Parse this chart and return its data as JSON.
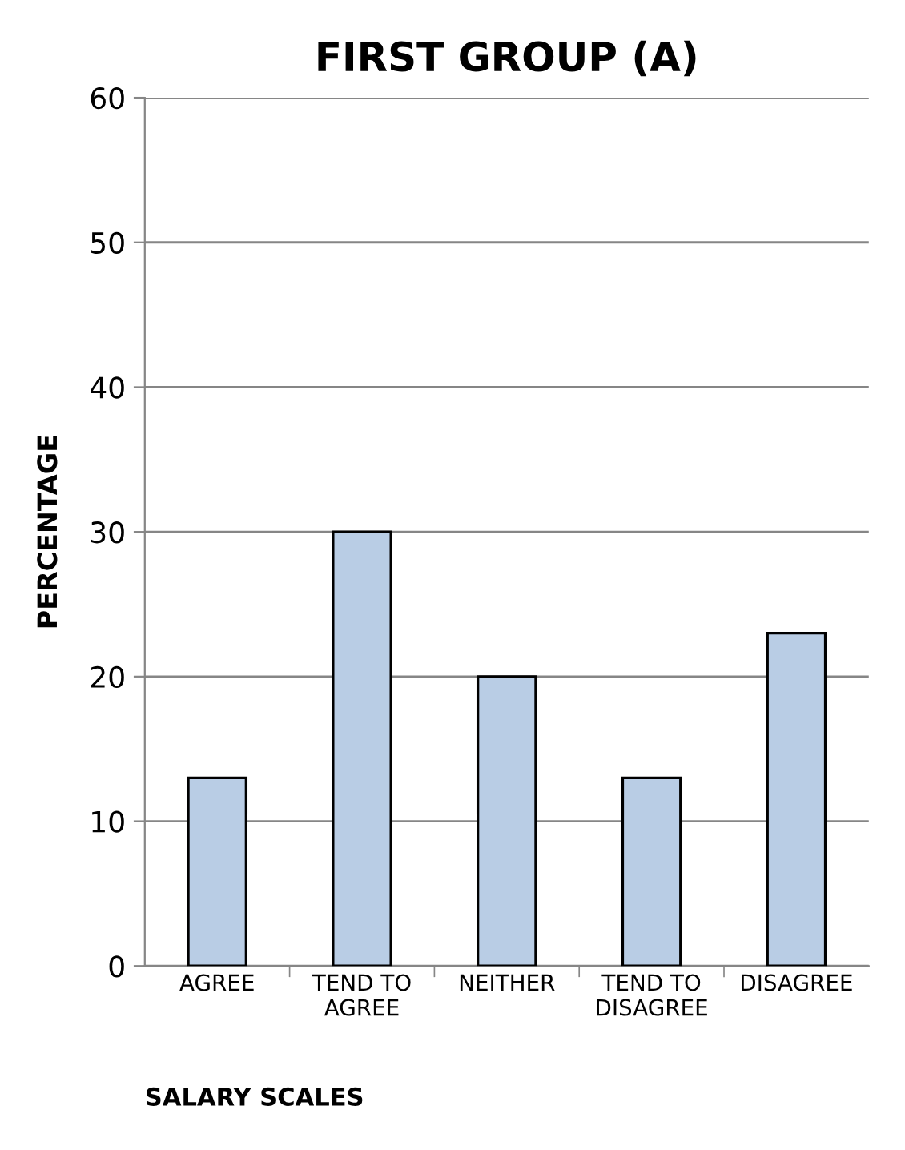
{
  "chart_data": {
    "type": "bar",
    "title": "FIRST GROUP (A)",
    "xlabel": "SALARY SCALES",
    "ylabel": "PERCENTAGE",
    "categories": [
      "AGREE",
      "TEND TO\nAGREE",
      "NEITHER",
      "TEND TO\nDISAGREE",
      "DISAGREE"
    ],
    "values": [
      13,
      30,
      20,
      13,
      23
    ],
    "color": "#b9cde5",
    "ylim": [
      0,
      60
    ],
    "yticks": [
      0,
      10,
      20,
      30,
      40,
      50,
      60
    ],
    "grid": "y",
    "legend": false
  }
}
